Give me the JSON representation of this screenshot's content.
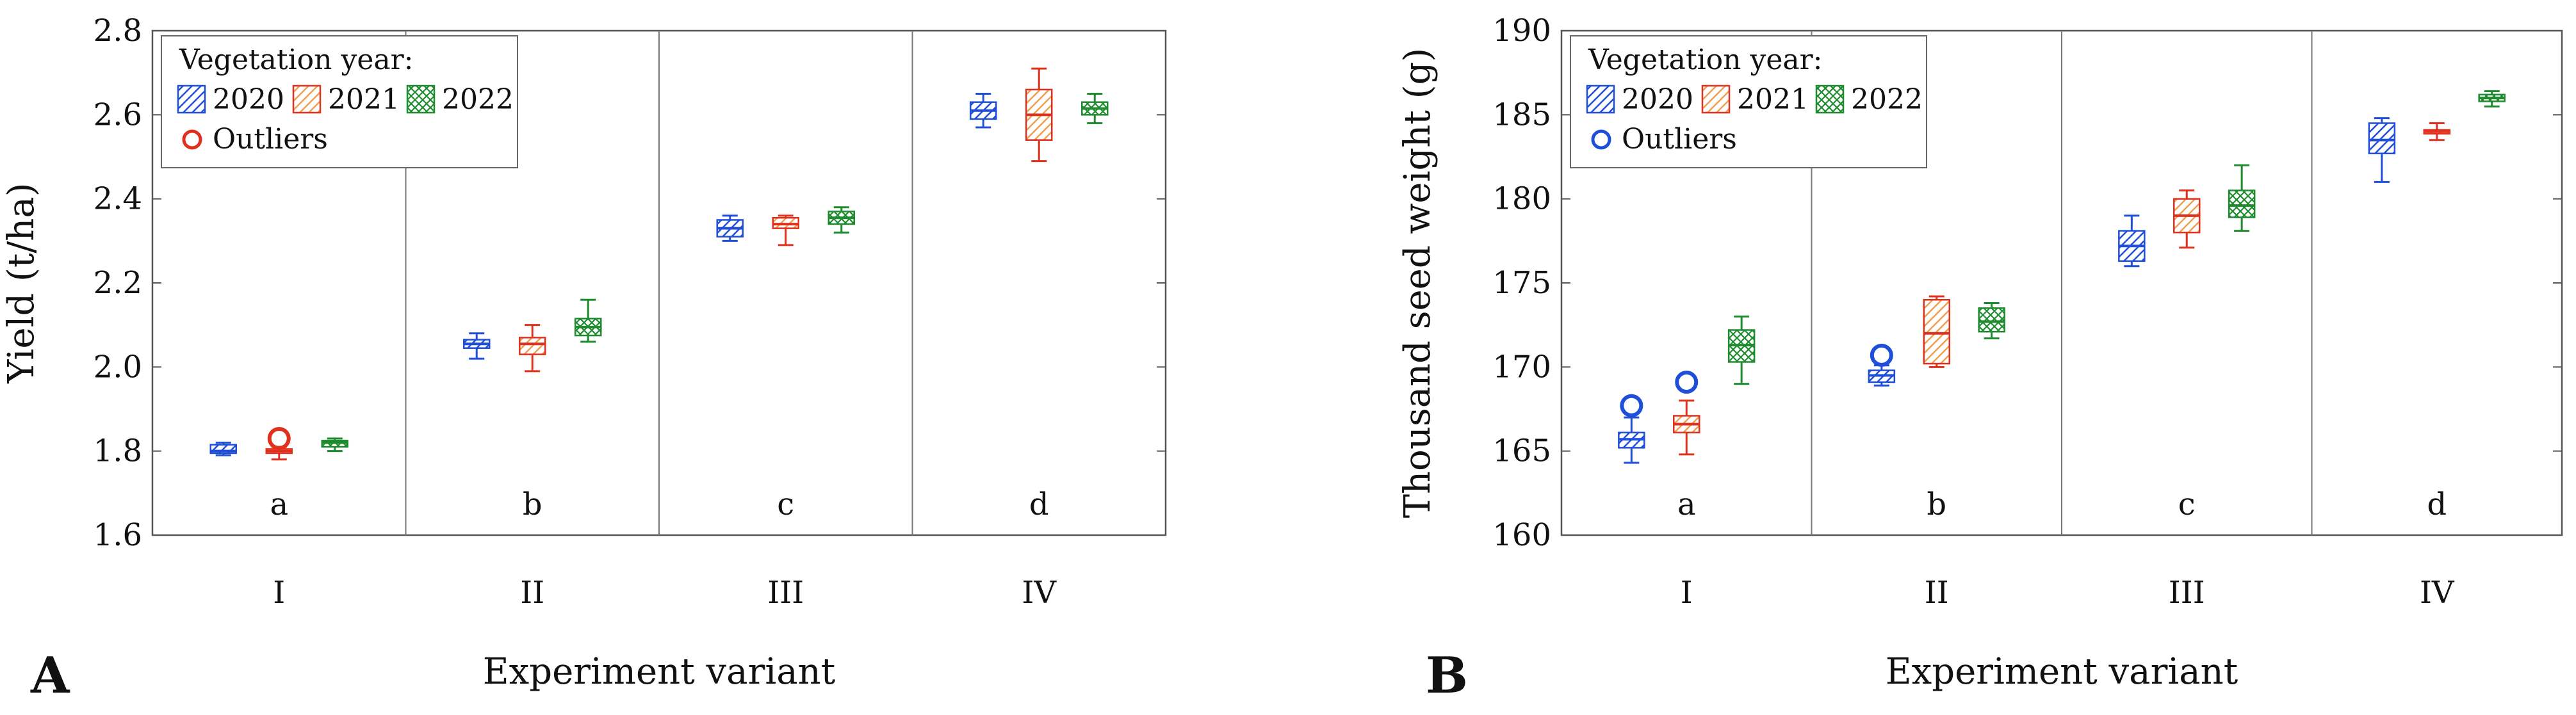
{
  "figure": {
    "colors": {
      "2020": "#1f4fd8",
      "2021": "#e0301e",
      "2022": "#1e8c2e",
      "hatch2021": "#f0a050",
      "axis": "#555555"
    },
    "icons": {
      "legend_2020": "diagonal-hatch-swatch",
      "legend_2021": "diagonal-hatch-swatch",
      "legend_2022": "crosshatch-swatch",
      "outlier": "open-circle-marker"
    }
  },
  "chart_data": [
    {
      "type": "box",
      "panel": "A",
      "xlabel": "Experiment variant",
      "ylabel": "Yield (t/ha)",
      "ylim": [
        1.6,
        2.8
      ],
      "yticks": [
        "1.6",
        "1.8",
        "2.0",
        "2.2",
        "2.4",
        "2.6",
        "2.8"
      ],
      "categories": [
        "I",
        "II",
        "III",
        "IV"
      ],
      "group_letters": [
        "a",
        "b",
        "c",
        "d"
      ],
      "legend": {
        "title": "Vegetation year:",
        "entries": [
          "2020",
          "2021",
          "2022"
        ],
        "outliers_label": "Outliers",
        "outlier_color": "#e0301e",
        "position": "top-left"
      },
      "series": [
        {
          "name": "2020",
          "boxes": [
            {
              "min": 1.79,
              "q1": 1.795,
              "median": 1.8,
              "q3": 1.815,
              "max": 1.82
            },
            {
              "min": 2.02,
              "q1": 2.045,
              "median": 2.055,
              "q3": 2.065,
              "max": 2.08
            },
            {
              "min": 2.3,
              "q1": 2.31,
              "median": 2.33,
              "q3": 2.35,
              "max": 2.36
            },
            {
              "min": 2.57,
              "q1": 2.59,
              "median": 2.61,
              "q3": 2.63,
              "max": 2.65
            }
          ]
        },
        {
          "name": "2021",
          "boxes": [
            {
              "min": 1.78,
              "q1": 1.795,
              "median": 1.8,
              "q3": 1.805,
              "max": 1.81,
              "outliers": [
                1.83
              ]
            },
            {
              "min": 1.99,
              "q1": 2.03,
              "median": 2.055,
              "q3": 2.07,
              "max": 2.1
            },
            {
              "min": 2.29,
              "q1": 2.33,
              "median": 2.34,
              "q3": 2.355,
              "max": 2.36
            },
            {
              "min": 2.49,
              "q1": 2.54,
              "median": 2.6,
              "q3": 2.66,
              "max": 2.71
            }
          ]
        },
        {
          "name": "2022",
          "boxes": [
            {
              "min": 1.8,
              "q1": 1.81,
              "median": 1.82,
              "q3": 1.825,
              "max": 1.83
            },
            {
              "min": 2.06,
              "q1": 2.075,
              "median": 2.095,
              "q3": 2.115,
              "max": 2.16
            },
            {
              "min": 2.32,
              "q1": 2.34,
              "median": 2.355,
              "q3": 2.37,
              "max": 2.38
            },
            {
              "min": 2.58,
              "q1": 2.6,
              "median": 2.615,
              "q3": 2.63,
              "max": 2.65
            }
          ]
        }
      ]
    },
    {
      "type": "box",
      "panel": "B",
      "xlabel": "Experiment variant",
      "ylabel": "Thousand seed weight (g)",
      "ylim": [
        160,
        190
      ],
      "yticks": [
        "160",
        "165",
        "170",
        "175",
        "180",
        "185",
        "190"
      ],
      "categories": [
        "I",
        "II",
        "III",
        "IV"
      ],
      "group_letters": [
        "a",
        "b",
        "c",
        "d"
      ],
      "legend": {
        "title": "Vegetation year:",
        "entries": [
          "2020",
          "2021",
          "2022"
        ],
        "outliers_label": "Outliers",
        "outlier_color": "#1f4fd8",
        "position": "top-left"
      },
      "series": [
        {
          "name": "2020",
          "boxes": [
            {
              "min": 164.3,
              "q1": 165.2,
              "median": 165.7,
              "q3": 166.1,
              "max": 167.0,
              "outliers": [
                167.7
              ]
            },
            {
              "min": 168.9,
              "q1": 169.1,
              "median": 169.5,
              "q3": 169.8,
              "max": 170.1,
              "outliers": [
                170.7
              ]
            },
            {
              "min": 176.0,
              "q1": 176.3,
              "median": 177.2,
              "q3": 178.1,
              "max": 179.0
            },
            {
              "min": 181.0,
              "q1": 182.7,
              "median": 183.5,
              "q3": 184.5,
              "max": 184.8
            }
          ]
        },
        {
          "name": "2021",
          "boxes": [
            {
              "min": 164.8,
              "q1": 166.1,
              "median": 166.6,
              "q3": 167.1,
              "max": 168.0,
              "outliers": [
                169.1
              ]
            },
            {
              "min": 170.0,
              "q1": 170.2,
              "median": 172.0,
              "q3": 174.0,
              "max": 174.2
            },
            {
              "min": 177.1,
              "q1": 178.0,
              "median": 179.0,
              "q3": 180.0,
              "max": 180.5
            },
            {
              "min": 183.5,
              "q1": 183.9,
              "median": 184.0,
              "q3": 184.1,
              "max": 184.5
            }
          ]
        },
        {
          "name": "2022",
          "boxes": [
            {
              "min": 169.0,
              "q1": 170.3,
              "median": 171.3,
              "q3": 172.2,
              "max": 173.0
            },
            {
              "min": 171.7,
              "q1": 172.1,
              "median": 172.7,
              "q3": 173.5,
              "max": 173.8
            },
            {
              "min": 178.1,
              "q1": 178.9,
              "median": 179.6,
              "q3": 180.5,
              "max": 182.0
            },
            {
              "min": 185.5,
              "q1": 185.8,
              "median": 186.0,
              "q3": 186.2,
              "max": 186.4
            }
          ]
        }
      ]
    }
  ]
}
